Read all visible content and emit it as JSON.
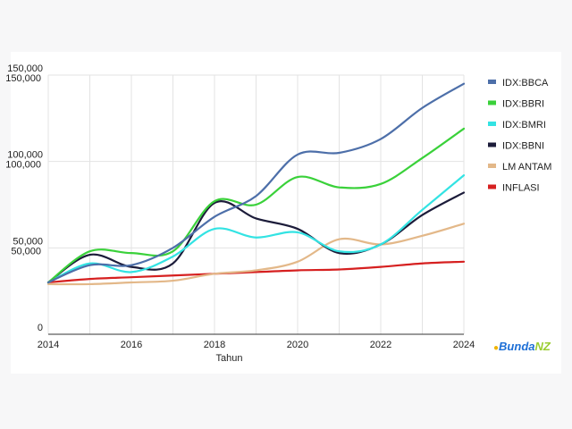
{
  "logo_text": "Bunda NZ",
  "chart_data": {
    "type": "line",
    "title": "",
    "xlabel": "Tahun",
    "ylabel": "",
    "xlim": [
      2014,
      2024
    ],
    "ylim": [
      0,
      150000
    ],
    "x_ticks": [
      "2014",
      "2016",
      "2018",
      "2020",
      "2022",
      "2024"
    ],
    "y_ticks": [
      "0",
      "50,000",
      "100,000",
      "150,000"
    ],
    "grid": "vertical every year, horizontal at 50,000 steps",
    "legend_position": "right",
    "x": [
      2014,
      2015,
      2016,
      2017,
      2018,
      2019,
      2020,
      2021,
      2022,
      2023,
      2024
    ],
    "series": [
      {
        "name": "IDX:BBCA",
        "color": "#4d6fa9",
        "values": [
          30000,
          40000,
          40000,
          50000,
          68000,
          80000,
          104000,
          105000,
          113000,
          131000,
          145000
        ]
      },
      {
        "name": "IDX:BBRI",
        "color": "#3ad13a",
        "values": [
          30000,
          48000,
          47000,
          48000,
          77000,
          75000,
          91000,
          85000,
          87000,
          102000,
          119000
        ]
      },
      {
        "name": "IDX:BMRI",
        "color": "#33e3e3",
        "values": [
          30000,
          41000,
          36000,
          45000,
          61000,
          56000,
          59000,
          48000,
          52000,
          72000,
          92000
        ]
      },
      {
        "name": "IDX:BBNI",
        "color": "#1c1c3a",
        "values": [
          30000,
          46000,
          39000,
          41000,
          76000,
          67000,
          61000,
          47000,
          52000,
          69000,
          82000
        ]
      },
      {
        "name": "LM ANTAM",
        "color": "#e3b889",
        "values": [
          29000,
          29000,
          30000,
          31000,
          35000,
          37000,
          42000,
          55000,
          52000,
          57000,
          64000
        ]
      },
      {
        "name": "INFLASI",
        "color": "#d62020",
        "values": [
          30000,
          32000,
          33000,
          34000,
          35000,
          36000,
          37000,
          37500,
          39000,
          41000,
          42000
        ]
      }
    ]
  }
}
